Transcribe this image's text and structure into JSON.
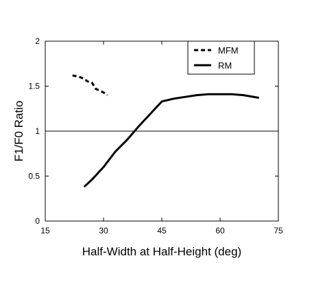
{
  "chart_data": {
    "type": "line",
    "xlabel": "Half-Width at Half-Height (deg)",
    "ylabel": "F1/F0 Ratio",
    "xlim": [
      15,
      75
    ],
    "ylim": [
      0,
      2
    ],
    "xticks": [
      "15",
      "30",
      "45",
      "60",
      "75"
    ],
    "yticks": [
      "0",
      "0.5",
      "1",
      "1.5",
      "2"
    ],
    "xtick_values": [
      15,
      30,
      45,
      60,
      75
    ],
    "ytick_values": [
      0,
      0.5,
      1,
      1.5,
      2
    ],
    "reference_line_y": 1,
    "grid": false,
    "legend_position": "top-right",
    "series": [
      {
        "name": "MFM",
        "style": "dashed",
        "color": "#000000",
        "x": [
          22,
          24,
          25,
          26,
          27,
          28,
          29,
          30,
          31
        ],
        "y": [
          1.62,
          1.6,
          1.58,
          1.55,
          1.54,
          1.47,
          1.45,
          1.43,
          1.4
        ]
      },
      {
        "name": "RM",
        "style": "solid",
        "color": "#000000",
        "x": [
          25,
          27,
          30,
          33,
          36,
          39,
          42,
          45,
          48,
          51,
          54,
          57,
          60,
          63,
          66,
          70
        ],
        "y": [
          0.38,
          0.46,
          0.6,
          0.77,
          0.9,
          1.05,
          1.19,
          1.33,
          1.36,
          1.38,
          1.4,
          1.41,
          1.41,
          1.41,
          1.4,
          1.37
        ]
      }
    ]
  }
}
